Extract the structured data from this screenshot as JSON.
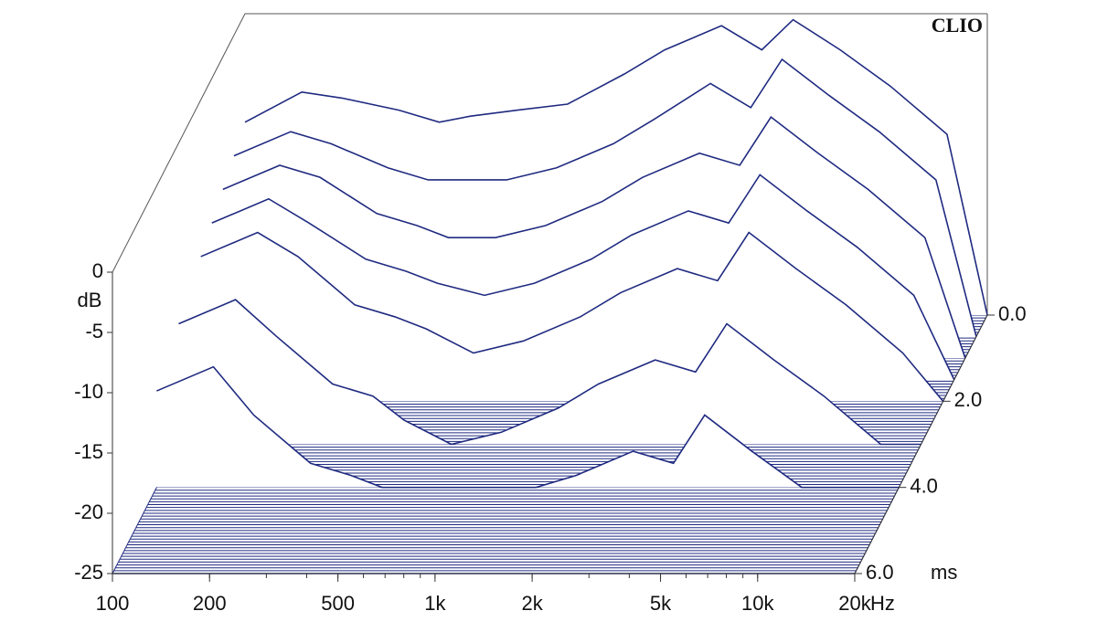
{
  "chart_data": {
    "type": "waterfall",
    "title": "CLIO",
    "x": [
      100,
      150,
      200,
      300,
      400,
      500,
      700,
      1000,
      1500,
      2000,
      3000,
      4000,
      5000,
      7000,
      10000,
      15000,
      20000
    ],
    "xlim": [
      100,
      20000
    ],
    "xticks": [
      100,
      200,
      500,
      {
        "value": 1000,
        "label": "1k"
      },
      {
        "value": 2000,
        "label": "2k"
      },
      {
        "value": 5000,
        "label": "5k"
      },
      {
        "value": 10000,
        "label": "10k"
      },
      {
        "value": 20000,
        "label": "20k"
      }
    ],
    "xlabel": "Hz",
    "log_x": true,
    "ylim": [
      -25,
      0
    ],
    "yticks": [
      0,
      -5,
      -10,
      -15,
      -20,
      -25
    ],
    "ylabel": "dB",
    "zlim": [
      0,
      6
    ],
    "zticks": [
      {
        "value": 0,
        "label": "0.0"
      },
      {
        "value": 2,
        "label": "2.0"
      },
      {
        "value": 4,
        "label": "4.0"
      },
      {
        "value": 6,
        "label": "6.0"
      }
    ],
    "zlabel": "ms",
    "color": "#1f2a80",
    "series": [
      {
        "time": 0,
        "values": [
          -9,
          -6.5,
          -7,
          -8,
          -9,
          -8.5,
          -8,
          -7.5,
          -5,
          -3,
          -1,
          -3,
          -0.5,
          -3,
          -6,
          -10,
          -25
        ]
      },
      {
        "time": 0.5,
        "values": [
          -10,
          -8,
          -9,
          -11,
          -12,
          -12,
          -12,
          -11,
          -9,
          -7,
          -4,
          -6,
          -2,
          -5,
          -8,
          -12,
          -25
        ]
      },
      {
        "time": 1,
        "values": [
          -11,
          -9,
          -10,
          -13,
          -14,
          -15,
          -15,
          -14,
          -12,
          -10,
          -8,
          -9,
          -5,
          -8,
          -11,
          -15,
          -25
        ]
      },
      {
        "time": 1.5,
        "values": [
          -12,
          -10,
          -12,
          -15,
          -16,
          -17,
          -18,
          -17,
          -15,
          -13,
          -11,
          -12,
          -8,
          -11,
          -14,
          -18,
          -25
        ]
      },
      {
        "time": 2,
        "values": [
          -13,
          -11,
          -13,
          -17,
          -18,
          -19,
          -21,
          -20,
          -18,
          -16,
          -14,
          -15,
          -11,
          -14,
          -17,
          -21,
          -25
        ]
      },
      {
        "time": 3,
        "values": [
          -15,
          -13,
          -16,
          -20,
          -21,
          -23,
          -25,
          -24,
          -22,
          -20,
          -18,
          -19,
          -15,
          -18,
          -21,
          -25,
          -25
        ]
      },
      {
        "time": 4,
        "values": [
          -17,
          -15,
          -19,
          -23,
          -24,
          -25,
          -25,
          -25,
          -25,
          -24,
          -22,
          -23,
          -19,
          -22,
          -25,
          -25,
          -25
        ]
      },
      {
        "time": 6,
        "values": [
          -25,
          -25,
          -25,
          -25,
          -25,
          -25,
          -25,
          -25,
          -25,
          -25,
          -25,
          -25,
          -25,
          -25,
          -25,
          -25,
          -25
        ]
      }
    ]
  }
}
